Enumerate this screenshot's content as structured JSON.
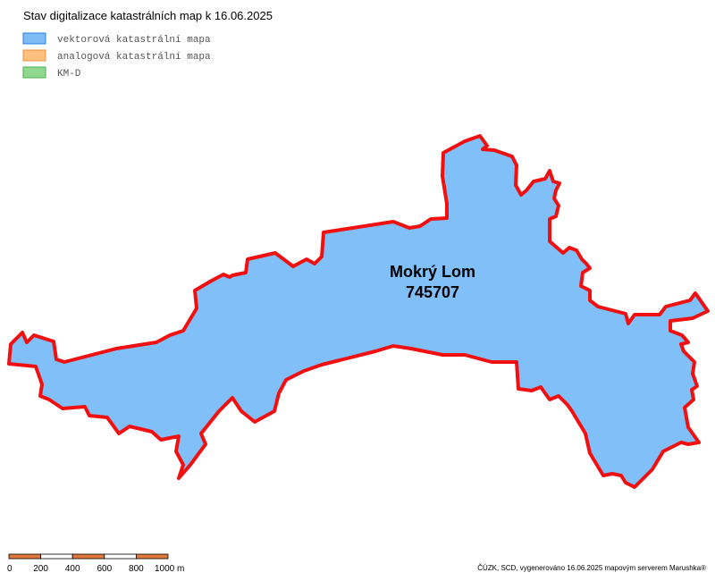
{
  "header": {
    "title": "Stav digitalizace katastrálních map k 16.06.2025"
  },
  "legend": [
    {
      "label": "vektorová katastrální mapa",
      "color": "#7fbbf5",
      "border": "#2a80d8"
    },
    {
      "label": "analogová katastrální mapa",
      "color": "#ffc080",
      "border": "#f0903c"
    },
    {
      "label": "KM-D",
      "color": "#90d890",
      "border": "#4cb04c"
    }
  ],
  "map": {
    "area_name": "Mokrý Lom",
    "area_code": "745707"
  },
  "scale_bar": {
    "labels": [
      "0",
      "200",
      "400",
      "600",
      "800",
      "1000 m"
    ]
  },
  "footer": {
    "credit": "ČÚZK, SCD, vygenerováno 16.06.2025 mapovým serverem Marushka®"
  }
}
